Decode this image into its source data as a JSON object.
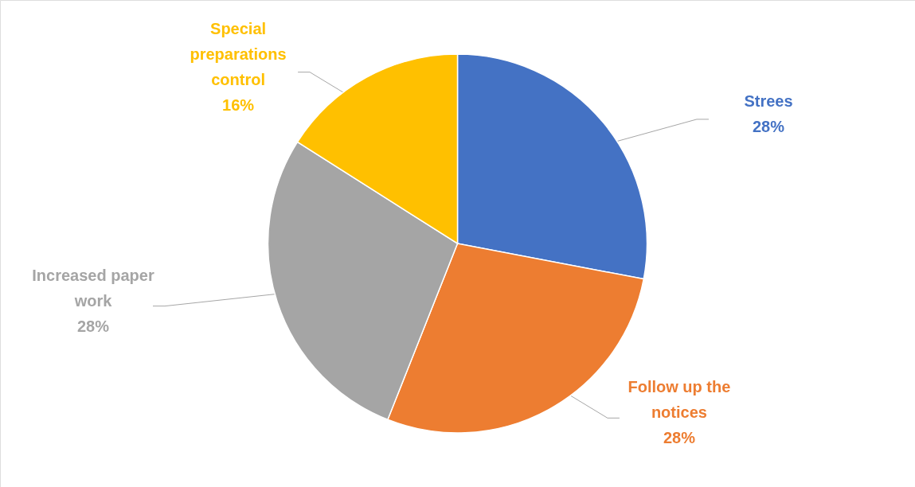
{
  "chart_data": {
    "type": "pie",
    "categories": [
      "Strees",
      "Follow up the notices",
      "Increased paper work",
      "Special preparations control"
    ],
    "values": [
      28,
      28,
      28,
      16
    ],
    "value_labels": [
      "28%",
      "28%",
      "28%",
      "16%"
    ],
    "colors": [
      "#4472c4",
      "#ed7d31",
      "#a5a5a5",
      "#ffc000"
    ]
  }
}
